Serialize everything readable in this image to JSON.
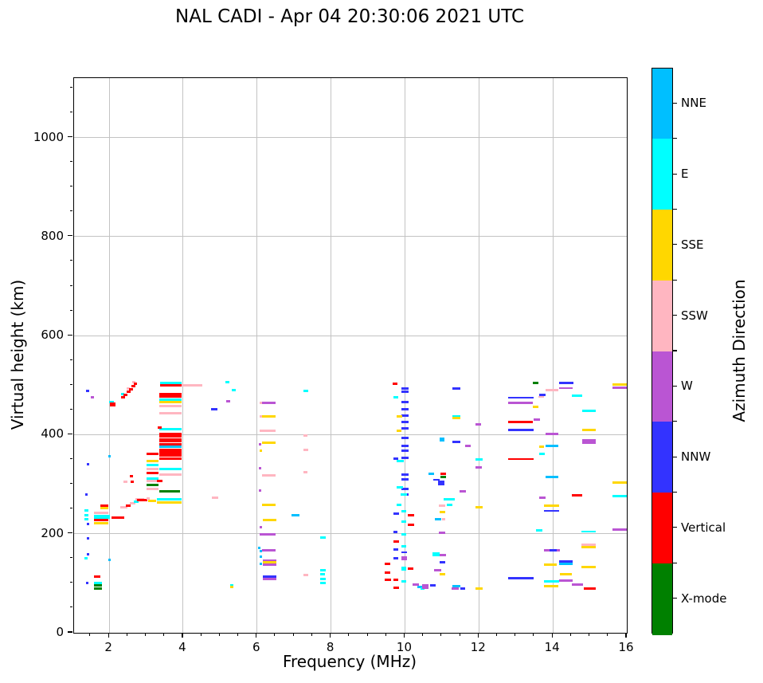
{
  "chart_data": {
    "type": "scatter",
    "title": "NAL CADI - Apr 04 20:30:06 2021 UTC",
    "xlabel": "Frequency (MHz)",
    "ylabel": "Virtual height (km)",
    "x_unit": "MHz",
    "y_unit": "km",
    "xlim": [
      1.05,
      16
    ],
    "ylim": [
      0,
      1120
    ],
    "xticks": [
      2,
      4,
      6,
      8,
      10,
      12,
      14,
      16
    ],
    "yticks": [
      0,
      200,
      400,
      600,
      800,
      1000
    ],
    "x_minor_step": 0.5,
    "y_minor_step": 50,
    "grid": true,
    "legend_position": "right-colorbar",
    "colorbar": {
      "label": "Azimuth Direction",
      "segments_top_to_bottom": [
        {
          "label": "NNE",
          "color": "#00BFFF"
        },
        {
          "label": "E",
          "color": "#00FFFF"
        },
        {
          "label": "SSE",
          "color": "#FFD700"
        },
        {
          "label": "SSW",
          "color": "#FFB6C1"
        },
        {
          "label": "W",
          "color": "#BA55D3"
        },
        {
          "label": "NNW",
          "color": "#3333FF"
        },
        {
          "label": "Vertical",
          "color": "#FF0000"
        },
        {
          "label": "X-mode",
          "color": "#008000"
        }
      ]
    },
    "direction_colors": {
      "NNE": "#00BFFF",
      "E": "#00FFFF",
      "SSE": "#FFD700",
      "SSW": "#FFB6C1",
      "W": "#BA55D3",
      "NNW": "#3333FF",
      "V": "#FF0000",
      "X": "#008000"
    },
    "point_format": [
      "freq_MHz",
      "virtual_height_km",
      "direction",
      "width_MHz",
      "thickness_px_optional"
    ],
    "echoes": [
      [
        1.37,
        488,
        "NNW",
        0.08
      ],
      [
        1.5,
        475,
        "W",
        0.08
      ],
      [
        1.4,
        340,
        "NNW",
        0.07
      ],
      [
        1.97,
        357,
        "NNE",
        0.07
      ],
      [
        1.35,
        280,
        "NNW",
        0.07
      ],
      [
        1.4,
        220,
        "NNW",
        0.07
      ],
      [
        1.4,
        190,
        "NNW",
        0.07
      ],
      [
        1.4,
        158,
        "NNW",
        0.07
      ],
      [
        1.33,
        150,
        "E",
        0.08
      ],
      [
        1.97,
        148,
        "NNE",
        0.08
      ],
      [
        1.37,
        100,
        "NNW",
        0.07
      ],
      [
        2.0,
        466,
        "E",
        0.12
      ],
      [
        2.02,
        461,
        "V",
        0.16,
        5
      ],
      [
        2.32,
        475,
        "V",
        0.1
      ],
      [
        2.33,
        482,
        "E",
        0.07
      ],
      [
        2.39,
        481,
        "V",
        0.1
      ],
      [
        2.47,
        487,
        "V",
        0.1
      ],
      [
        2.48,
        494,
        "SSW",
        0.08
      ],
      [
        2.54,
        492,
        "V",
        0.1
      ],
      [
        2.6,
        498,
        "V",
        0.1
      ],
      [
        2.63,
        506,
        "SSW",
        0.08
      ],
      [
        2.66,
        503,
        "V",
        0.1
      ],
      [
        2.39,
        305,
        "SSW",
        0.11
      ],
      [
        2.58,
        305,
        "V",
        0.08
      ],
      [
        2.56,
        316,
        "V",
        0.08
      ],
      [
        1.76,
        256,
        "V",
        0.22
      ],
      [
        1.76,
        252,
        "SSE",
        0.22
      ],
      [
        1.33,
        247,
        "E",
        0.1
      ],
      [
        1.33,
        238,
        "E",
        0.1
      ],
      [
        1.33,
        230,
        "E",
        0.1
      ],
      [
        1.59,
        242,
        "SSW",
        0.38
      ],
      [
        1.59,
        234,
        "E",
        0.42,
        5
      ],
      [
        1.59,
        227,
        "V",
        0.38
      ],
      [
        1.59,
        222,
        "SSE",
        0.38
      ],
      [
        2.06,
        232,
        "V",
        0.34
      ],
      [
        1.59,
        114,
        "V",
        0.17
      ],
      [
        1.59,
        101,
        "E",
        0.21
      ],
      [
        1.59,
        95,
        "X",
        0.21
      ],
      [
        1.59,
        89,
        "X",
        0.21
      ],
      [
        2.3,
        253,
        "SSW",
        0.2
      ],
      [
        2.45,
        257,
        "V",
        0.12
      ],
      [
        2.55,
        261,
        "SSW",
        0.15
      ],
      [
        2.67,
        264,
        "E",
        0.12
      ],
      [
        2.7,
        270,
        "SSW",
        0.25
      ],
      [
        2.76,
        268,
        "V",
        0.28
      ],
      [
        3.0,
        271,
        "SSW",
        0.1
      ],
      [
        3.05,
        266,
        "SSE",
        0.22
      ],
      [
        3.29,
        269,
        "E",
        0.67
      ],
      [
        3.29,
        263,
        "SSE",
        0.67
      ],
      [
        3.36,
        285,
        "X",
        0.56
      ],
      [
        3.01,
        362,
        "V",
        0.32
      ],
      [
        3.01,
        346,
        "SSE",
        0.32
      ],
      [
        3.01,
        338,
        "E",
        0.32
      ],
      [
        3.01,
        330,
        "SSW",
        0.32
      ],
      [
        3.01,
        322,
        "V",
        0.32
      ],
      [
        3.01,
        311,
        "E",
        0.32
      ],
      [
        3.01,
        306,
        "SSW",
        0.32
      ],
      [
        3.01,
        298,
        "X",
        0.32
      ],
      [
        3.01,
        291,
        "SSW",
        0.32
      ],
      [
        3.36,
        411,
        "E",
        0.6
      ],
      [
        3.36,
        402,
        "V",
        0.6
      ],
      [
        3.36,
        396,
        "V",
        0.6
      ],
      [
        3.36,
        388,
        "V",
        0.6,
        5
      ],
      [
        3.36,
        381,
        "V",
        0.6
      ],
      [
        3.36,
        376,
        "NNE",
        0.6
      ],
      [
        3.36,
        368,
        "V",
        0.6,
        5
      ],
      [
        3.36,
        360,
        "V",
        0.6,
        5
      ],
      [
        3.36,
        352,
        "V",
        0.6
      ],
      [
        3.36,
        330,
        "E",
        0.6
      ],
      [
        3.36,
        319,
        "SSW",
        0.6
      ],
      [
        3.3,
        306,
        "V",
        0.15
      ],
      [
        3.32,
        415,
        "V",
        0.1
      ],
      [
        3.38,
        504,
        "E",
        0.58
      ],
      [
        3.38,
        500,
        "V",
        0.58
      ],
      [
        3.96,
        499,
        "SSW",
        0.55
      ],
      [
        3.36,
        482,
        "V",
        0.6
      ],
      [
        3.36,
        477,
        "V",
        0.6
      ],
      [
        3.36,
        470,
        "E",
        0.6
      ],
      [
        3.36,
        466,
        "SSE",
        0.6
      ],
      [
        3.36,
        458,
        "SSW",
        0.6
      ],
      [
        3.36,
        444,
        "SSW",
        0.6
      ],
      [
        4.76,
        452,
        "NNW",
        0.17
      ],
      [
        4.78,
        273,
        "SSW",
        0.17
      ],
      [
        5.15,
        506,
        "E",
        0.1
      ],
      [
        5.32,
        490,
        "E",
        0.1
      ],
      [
        5.17,
        467,
        "W",
        0.1
      ],
      [
        5.28,
        96,
        "E",
        0.07
      ],
      [
        5.28,
        92,
        "SSE",
        0.07
      ],
      [
        6.07,
        465,
        "SSW",
        0.07
      ],
      [
        6.14,
        465,
        "W",
        0.36
      ],
      [
        6.07,
        437,
        "SSW",
        0.07
      ],
      [
        6.14,
        437,
        "SSE",
        0.36
      ],
      [
        6.07,
        408,
        "SSW",
        0.43
      ],
      [
        6.05,
        380,
        "W",
        0.07
      ],
      [
        6.14,
        384,
        "SSE",
        0.36
      ],
      [
        6.07,
        367,
        "SSE",
        0.07
      ],
      [
        6.05,
        332,
        "W",
        0.07
      ],
      [
        6.14,
        318,
        "SSW",
        0.36
      ],
      [
        6.05,
        288,
        "W",
        0.07
      ],
      [
        6.14,
        258,
        "SSE",
        0.36
      ],
      [
        6.16,
        227,
        "SSE",
        0.36
      ],
      [
        6.07,
        214,
        "W",
        0.07
      ],
      [
        6.07,
        198,
        "W",
        0.43
      ],
      [
        6.03,
        172,
        "NNE",
        0.07
      ],
      [
        6.07,
        165,
        "NNE",
        0.07
      ],
      [
        6.14,
        166,
        "W",
        0.36
      ],
      [
        6.07,
        153,
        "NNE",
        0.07
      ],
      [
        6.16,
        146,
        "W",
        0.36
      ],
      [
        6.16,
        142,
        "SSE",
        0.36
      ],
      [
        6.16,
        137,
        "W",
        0.36
      ],
      [
        6.07,
        139,
        "NNE",
        0.07
      ],
      [
        6.16,
        114,
        "NNW",
        0.36
      ],
      [
        6.16,
        108,
        "W",
        0.36
      ],
      [
        6.93,
        237,
        "NNE",
        0.22
      ],
      [
        7.26,
        488,
        "E",
        0.12
      ],
      [
        7.26,
        399,
        "SSW",
        0.1
      ],
      [
        7.26,
        369,
        "SSW",
        0.12
      ],
      [
        7.26,
        324,
        "SSW",
        0.1
      ],
      [
        7.26,
        116,
        "SSW",
        0.12
      ],
      [
        7.71,
        192,
        "E",
        0.14
      ],
      [
        7.71,
        127,
        "E",
        0.15
      ],
      [
        7.71,
        119,
        "E",
        0.13
      ],
      [
        7.71,
        108,
        "E",
        0.15
      ],
      [
        7.71,
        101,
        "E",
        0.15
      ],
      [
        9.66,
        503,
        "V",
        0.14
      ],
      [
        9.69,
        475,
        "E",
        0.13
      ],
      [
        9.68,
        352,
        "NNW",
        0.13
      ],
      [
        9.68,
        240,
        "NNW",
        0.15
      ],
      [
        9.68,
        203,
        "NNW",
        0.11
      ],
      [
        9.68,
        184,
        "V",
        0.15
      ],
      [
        9.68,
        168,
        "NNW",
        0.13
      ],
      [
        9.68,
        151,
        "NNW",
        0.13
      ],
      [
        9.46,
        140,
        "V",
        0.15
      ],
      [
        9.46,
        122,
        "V",
        0.15
      ],
      [
        9.46,
        107,
        "V",
        0.17
      ],
      [
        9.69,
        107,
        "V",
        0.13
      ],
      [
        9.69,
        91,
        "V",
        0.15
      ],
      [
        9.9,
        494,
        "NNW",
        0.19
      ],
      [
        9.9,
        487,
        "NNW",
        0.19
      ],
      [
        9.9,
        466,
        "NNW",
        0.19
      ],
      [
        9.9,
        451,
        "NNW",
        0.19
      ],
      [
        9.9,
        438,
        "NNW",
        0.19
      ],
      [
        9.9,
        425,
        "NNW",
        0.19
      ],
      [
        9.9,
        412,
        "NNW",
        0.19
      ],
      [
        9.9,
        393,
        "NNW",
        0.19
      ],
      [
        9.9,
        378,
        "NNW",
        0.19
      ],
      [
        9.9,
        367,
        "NNW",
        0.19
      ],
      [
        9.9,
        353,
        "NNW",
        0.19
      ],
      [
        9.9,
        319,
        "NNW",
        0.19
      ],
      [
        9.9,
        310,
        "NNW",
        0.19
      ],
      [
        9.9,
        291,
        "NNW",
        0.19
      ],
      [
        9.9,
        279,
        "NNW",
        0.19
      ],
      [
        9.78,
        437,
        "SSE",
        0.15
      ],
      [
        9.78,
        408,
        "SSE",
        0.13
      ],
      [
        9.78,
        347,
        "E",
        0.19
      ],
      [
        9.78,
        293,
        "E",
        0.17
      ],
      [
        9.89,
        280,
        "E",
        0.17
      ],
      [
        9.78,
        258,
        "E",
        0.13
      ],
      [
        9.9,
        245,
        "E",
        0.13
      ],
      [
        9.9,
        224,
        "E",
        0.13
      ],
      [
        9.9,
        198,
        "E",
        0.13
      ],
      [
        9.9,
        175,
        "E",
        0.13
      ],
      [
        9.9,
        162,
        "NNW",
        0.15,
        2
      ],
      [
        9.9,
        150,
        "W",
        0.15,
        5
      ],
      [
        9.9,
        130,
        "E",
        0.13,
        5
      ],
      [
        9.9,
        104,
        "E",
        0.13
      ],
      [
        10.08,
        237,
        "V",
        0.17
      ],
      [
        10.08,
        218,
        "V",
        0.17
      ],
      [
        10.08,
        130,
        "V",
        0.15
      ],
      [
        10.21,
        97,
        "W",
        0.17
      ],
      [
        10.34,
        93,
        "NNE",
        0.15
      ],
      [
        10.42,
        90,
        "E",
        0.1
      ],
      [
        10.47,
        94,
        "W",
        0.17,
        6
      ],
      [
        10.67,
        95,
        "NNW",
        0.15
      ],
      [
        10.64,
        321,
        "NNE",
        0.15
      ],
      [
        10.94,
        390,
        "NNE",
        0.13,
        5
      ],
      [
        10.95,
        321,
        "V",
        0.15
      ],
      [
        10.95,
        315,
        "X",
        0.15
      ],
      [
        10.76,
        309,
        "NNW",
        0.17,
        2
      ],
      [
        10.9,
        303,
        "NNW",
        0.17,
        6
      ],
      [
        10.92,
        256,
        "SSW",
        0.17
      ],
      [
        10.94,
        243,
        "SSE",
        0.15
      ],
      [
        10.81,
        230,
        "NNE",
        0.17
      ],
      [
        11.0,
        230,
        "SSW",
        0.08
      ],
      [
        10.92,
        202,
        "W",
        0.17
      ],
      [
        10.75,
        159,
        "E",
        0.19,
        5
      ],
      [
        10.94,
        157,
        "W",
        0.17
      ],
      [
        10.94,
        143,
        "NNW",
        0.15
      ],
      [
        10.79,
        127,
        "W",
        0.19
      ],
      [
        10.94,
        118,
        "SSE",
        0.15
      ],
      [
        11.05,
        269,
        "E",
        0.3
      ],
      [
        11.14,
        258,
        "E",
        0.15
      ],
      [
        11.29,
        493,
        "NNW",
        0.21
      ],
      [
        11.29,
        437,
        "E",
        0.21
      ],
      [
        11.29,
        433,
        "SSE",
        0.21
      ],
      [
        11.29,
        385,
        "NNW",
        0.21
      ],
      [
        11.63,
        378,
        "W",
        0.15
      ],
      [
        11.47,
        285,
        "W",
        0.17
      ],
      [
        11.29,
        94,
        "NNE",
        0.21
      ],
      [
        11.27,
        89,
        "W",
        0.19
      ],
      [
        11.5,
        89,
        "NNW",
        0.13
      ],
      [
        11.91,
        421,
        "W",
        0.15
      ],
      [
        11.91,
        350,
        "E",
        0.19
      ],
      [
        11.91,
        334,
        "W",
        0.17
      ],
      [
        11.91,
        254,
        "SSE",
        0.19
      ],
      [
        11.91,
        89,
        "SSE",
        0.19
      ],
      [
        12.8,
        474,
        "NNW",
        0.67,
        2
      ],
      [
        12.8,
        464,
        "W",
        0.65
      ],
      [
        12.8,
        426,
        "V",
        0.65
      ],
      [
        12.8,
        410,
        "NNW",
        0.67
      ],
      [
        12.8,
        351,
        "V",
        0.69,
        2
      ],
      [
        12.8,
        111,
        "NNW",
        0.69
      ],
      [
        13.46,
        505,
        "X",
        0.15
      ],
      [
        13.62,
        481,
        "NNW",
        0.19
      ],
      [
        13.6,
        477,
        "SSW",
        0.17,
        2
      ],
      [
        13.46,
        457,
        "SSE",
        0.15
      ],
      [
        13.49,
        430,
        "W",
        0.17
      ],
      [
        13.62,
        375,
        "SSE",
        0.13
      ],
      [
        13.62,
        362,
        "E",
        0.17
      ],
      [
        13.62,
        272,
        "W",
        0.19
      ],
      [
        13.55,
        207,
        "E",
        0.17
      ],
      [
        13.81,
        490,
        "SSW",
        0.34
      ],
      [
        13.81,
        401,
        "W",
        0.34
      ],
      [
        13.81,
        378,
        "NNE",
        0.34
      ],
      [
        13.81,
        314,
        "NNE",
        0.34
      ],
      [
        13.77,
        256,
        "SSE",
        0.39
      ],
      [
        13.77,
        246,
        "NNW",
        0.39,
        2
      ],
      [
        13.77,
        167,
        "W",
        0.41
      ],
      [
        13.9,
        167,
        "NNW",
        0.2
      ],
      [
        13.77,
        138,
        "SSE",
        0.34
      ],
      [
        13.77,
        103,
        "E",
        0.39
      ],
      [
        13.77,
        94,
        "SSE",
        0.37
      ],
      [
        14.16,
        504,
        "NNW",
        0.39
      ],
      [
        14.16,
        494,
        "W",
        0.37,
        2
      ],
      [
        14.16,
        144,
        "NNW",
        0.37
      ],
      [
        14.16,
        139,
        "NNE",
        0.37
      ],
      [
        14.18,
        118,
        "SSE",
        0.34
      ],
      [
        14.16,
        106,
        "W",
        0.37
      ],
      [
        14.52,
        478,
        "E",
        0.28
      ],
      [
        14.52,
        277,
        "V",
        0.28
      ],
      [
        14.52,
        97,
        "W",
        0.3
      ],
      [
        14.8,
        448,
        "E",
        0.35
      ],
      [
        14.8,
        410,
        "SSE",
        0.35
      ],
      [
        14.8,
        386,
        "W",
        0.35,
        6
      ],
      [
        14.78,
        204,
        "E",
        0.37,
        2
      ],
      [
        14.78,
        178,
        "SSW",
        0.37
      ],
      [
        14.78,
        173,
        "SSE",
        0.37
      ],
      [
        14.78,
        132,
        "SSE",
        0.37
      ],
      [
        14.83,
        89,
        "V",
        0.32
      ],
      [
        15.62,
        501,
        "SSE",
        0.38
      ],
      [
        15.62,
        495,
        "W",
        0.38
      ],
      [
        15.62,
        303,
        "SSE",
        0.38
      ],
      [
        15.62,
        276,
        "E",
        0.38
      ],
      [
        15.62,
        209,
        "W",
        0.4
      ]
    ]
  }
}
